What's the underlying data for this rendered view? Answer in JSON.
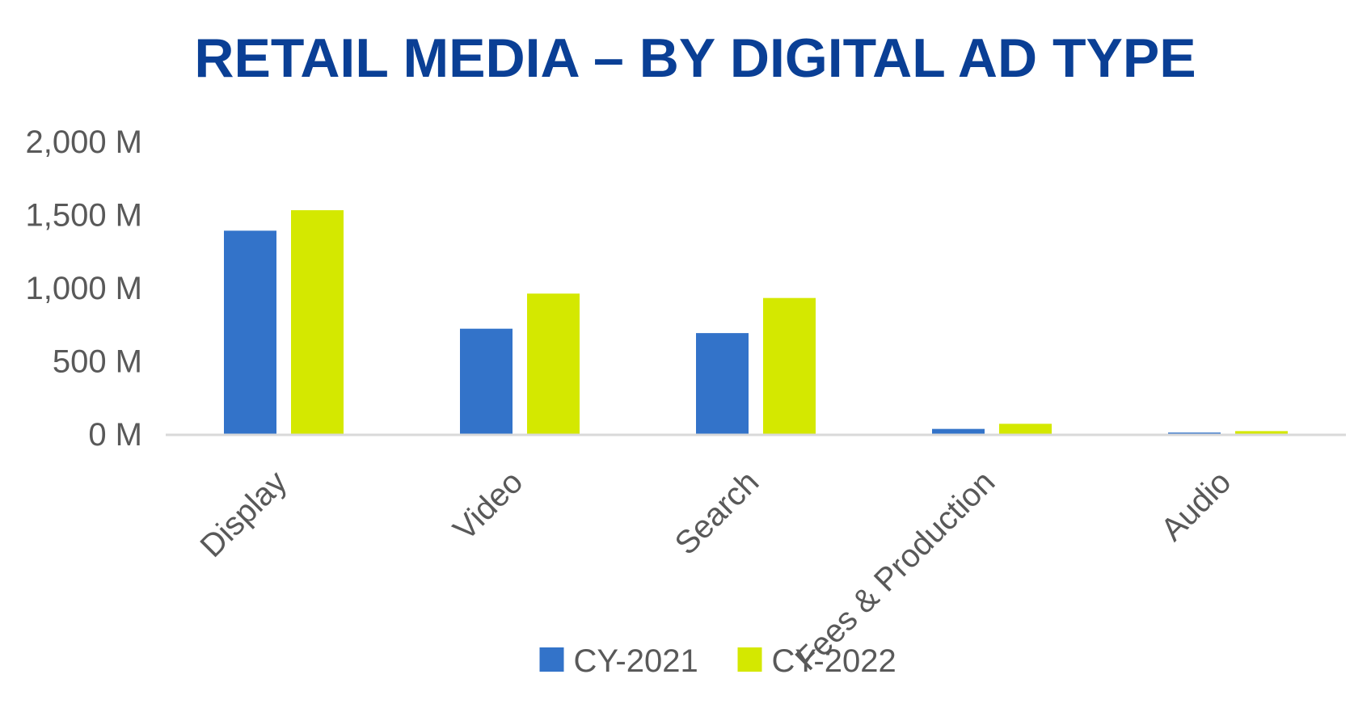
{
  "chart_data": {
    "type": "bar",
    "title": "RETAIL MEDIA – BY DIGITAL AD TYPE",
    "xlabel": "",
    "ylabel": "",
    "categories": [
      "Display",
      "Video",
      "Search",
      "Fees & Production",
      "Audio"
    ],
    "series": [
      {
        "name": "CY-2021",
        "color": "#3373c9",
        "values": [
          1390,
          720,
          690,
          35,
          10
        ]
      },
      {
        "name": "CY-2022",
        "color": "#d4e800",
        "values": [
          1530,
          960,
          930,
          70,
          20
        ]
      }
    ],
    "ylim": [
      0,
      2000
    ],
    "yticks": [
      0,
      500,
      1000,
      1500,
      2000
    ],
    "ytick_labels": [
      "0 M",
      "500 M",
      "1,000 M",
      "1,500 M",
      "2,000 M"
    ],
    "grid": false,
    "legend_position": "bottom",
    "axis_color": "#d9d9d9"
  }
}
